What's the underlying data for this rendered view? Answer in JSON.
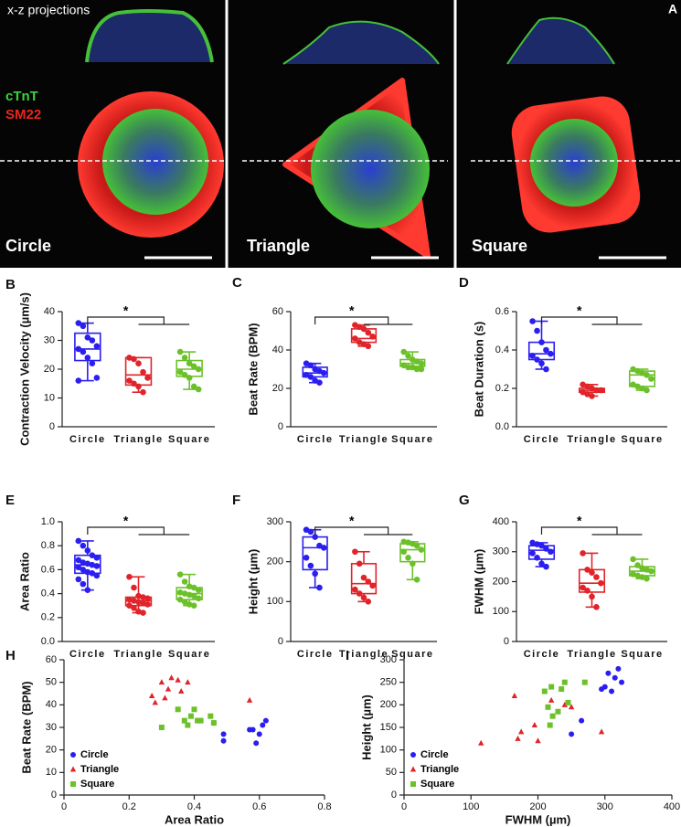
{
  "panel_a": {
    "panel": "A",
    "projection_label": "x-z projections",
    "stains": [
      {
        "text": "cTnT",
        "color": "#3cd23c"
      },
      {
        "text": "SM22",
        "color": "#e8261e"
      }
    ],
    "shapes": [
      "Circle",
      "Triangle",
      "Square"
    ]
  },
  "chart_data": [
    {
      "type": "box",
      "panel": "B",
      "y_label": "Contraction Velocity (µm/s)",
      "ylim": [
        0,
        40
      ],
      "yticks": [
        0,
        10,
        20,
        30,
        40
      ],
      "annotation": "*",
      "series": [
        {
          "name": "Circle",
          "color": "#2b1ef0",
          "min": 16,
          "q1": 23,
          "median": 27,
          "q3": 32.5,
          "max": 36,
          "points": [
            36,
            35,
            31,
            30,
            28,
            27,
            26,
            24,
            22,
            17,
            16
          ]
        },
        {
          "name": "Triangle",
          "color": "#e0242a",
          "min": 12,
          "q1": 14.5,
          "median": 18,
          "q3": 24,
          "max": 24,
          "points": [
            24,
            23.5,
            22,
            19,
            17,
            16,
            15,
            14,
            12
          ]
        },
        {
          "name": "Square",
          "color": "#6cc12a",
          "min": 13,
          "q1": 17.5,
          "median": 20,
          "q3": 23,
          "max": 26,
          "points": [
            26,
            24,
            22,
            21,
            20,
            19,
            18,
            17,
            14,
            13
          ]
        }
      ]
    },
    {
      "type": "box",
      "panel": "C",
      "y_label": "Beat Rate (BPM)",
      "ylim": [
        0,
        60
      ],
      "yticks": [
        0,
        20,
        40,
        60
      ],
      "annotation": "*",
      "series": [
        {
          "name": "Circle",
          "color": "#2b1ef0",
          "min": 23,
          "q1": 26,
          "median": 28,
          "q3": 31,
          "max": 33,
          "points": [
            33,
            32,
            30,
            29,
            28,
            27,
            26,
            24,
            23
          ]
        },
        {
          "name": "Triangle",
          "color": "#e0242a",
          "min": 42,
          "q1": 44,
          "median": 46,
          "q3": 51,
          "max": 53,
          "points": [
            53,
            52,
            51,
            49,
            47,
            46,
            44,
            43,
            42
          ]
        },
        {
          "name": "Square",
          "color": "#6cc12a",
          "min": 30,
          "q1": 31.5,
          "median": 33,
          "q3": 35,
          "max": 39,
          "points": [
            39,
            37,
            35,
            34,
            33,
            32,
            31,
            31,
            30,
            30
          ]
        }
      ]
    },
    {
      "type": "box",
      "panel": "D",
      "y_label": "Beat Duration (s)",
      "ylim": [
        0,
        0.6
      ],
      "yticks": [
        {
          "value": 0,
          "label": "0.0"
        },
        0.2,
        0.4,
        0.6
      ],
      "annotation": "*",
      "series": [
        {
          "name": "Circle",
          "color": "#2b1ef0",
          "min": 0.3,
          "q1": 0.35,
          "median": 0.38,
          "q3": 0.44,
          "max": 0.55,
          "points": [
            0.55,
            0.5,
            0.44,
            0.4,
            0.38,
            0.37,
            0.35,
            0.33,
            0.3
          ]
        },
        {
          "name": "Triangle",
          "color": "#e0242a",
          "min": 0.16,
          "q1": 0.18,
          "median": 0.19,
          "q3": 0.2,
          "max": 0.22,
          "points": [
            0.22,
            0.21,
            0.2,
            0.19,
            0.19,
            0.18,
            0.17,
            0.16
          ]
        },
        {
          "name": "Square",
          "color": "#6cc12a",
          "min": 0.19,
          "q1": 0.21,
          "median": 0.27,
          "q3": 0.29,
          "max": 0.3,
          "points": [
            0.3,
            0.29,
            0.28,
            0.27,
            0.25,
            0.22,
            0.21,
            0.2,
            0.19
          ]
        }
      ]
    },
    {
      "type": "box",
      "panel": "E",
      "y_label": "Area Ratio",
      "ylim": [
        0,
        1
      ],
      "yticks": [
        {
          "value": 0,
          "label": "0.0"
        },
        0.2,
        0.4,
        0.6,
        0.8,
        {
          "value": 1,
          "label": "1.0"
        }
      ],
      "annotation": "*",
      "series": [
        {
          "name": "Circle",
          "color": "#2b1ef0",
          "min": 0.43,
          "q1": 0.57,
          "median": 0.64,
          "q3": 0.72,
          "max": 0.84,
          "points": [
            0.84,
            0.8,
            0.76,
            0.72,
            0.7,
            0.68,
            0.66,
            0.65,
            0.64,
            0.63,
            0.62,
            0.6,
            0.58,
            0.57,
            0.55,
            0.52,
            0.48,
            0.43
          ]
        },
        {
          "name": "Triangle",
          "color": "#e0242a",
          "min": 0.24,
          "q1": 0.3,
          "median": 0.34,
          "q3": 0.37,
          "max": 0.54,
          "points": [
            0.54,
            0.45,
            0.38,
            0.37,
            0.36,
            0.35,
            0.34,
            0.33,
            0.32,
            0.31,
            0.3,
            0.28,
            0.25,
            0.24
          ]
        },
        {
          "name": "Square",
          "color": "#6cc12a",
          "min": 0.3,
          "q1": 0.35,
          "median": 0.4,
          "q3": 0.45,
          "max": 0.56,
          "points": [
            0.56,
            0.5,
            0.46,
            0.45,
            0.43,
            0.41,
            0.4,
            0.39,
            0.38,
            0.36,
            0.35,
            0.33,
            0.31,
            0.3
          ]
        }
      ]
    },
    {
      "type": "box",
      "panel": "F",
      "y_label": "Height (µm)",
      "ylim": [
        0,
        300
      ],
      "yticks": [
        0,
        100,
        200,
        300
      ],
      "annotation": "*",
      "series": [
        {
          "name": "Circle",
          "color": "#2b1ef0",
          "min": 135,
          "q1": 180,
          "median": 235,
          "q3": 262,
          "max": 280,
          "points": [
            280,
            275,
            262,
            240,
            235,
            210,
            190,
            170,
            135
          ]
        },
        {
          "name": "Triangle",
          "color": "#e0242a",
          "min": 100,
          "q1": 120,
          "median": 145,
          "q3": 195,
          "max": 225,
          "points": [
            225,
            195,
            160,
            150,
            140,
            130,
            120,
            110,
            100
          ]
        },
        {
          "name": "Square",
          "color": "#6cc12a",
          "min": 155,
          "q1": 200,
          "median": 230,
          "q3": 245,
          "max": 250,
          "points": [
            250,
            248,
            245,
            240,
            230,
            225,
            210,
            195,
            155
          ]
        }
      ]
    },
    {
      "type": "box",
      "panel": "G",
      "y_label": "FWHM (µm)",
      "ylim": [
        0,
        400
      ],
      "yticks": [
        0,
        100,
        200,
        300,
        400
      ],
      "annotation": "*",
      "series": [
        {
          "name": "Circle",
          "color": "#2b1ef0",
          "min": 250,
          "q1": 275,
          "median": 305,
          "q3": 320,
          "max": 330,
          "points": [
            330,
            325,
            320,
            310,
            300,
            295,
            280,
            260,
            250
          ]
        },
        {
          "name": "Triangle",
          "color": "#e0242a",
          "min": 115,
          "q1": 165,
          "median": 195,
          "q3": 240,
          "max": 295,
          "points": [
            295,
            240,
            230,
            215,
            195,
            180,
            170,
            150,
            115
          ]
        },
        {
          "name": "Square",
          "color": "#6cc12a",
          "min": 210,
          "q1": 220,
          "median": 235,
          "q3": 250,
          "max": 275,
          "points": [
            275,
            255,
            245,
            240,
            235,
            225,
            220,
            215,
            210
          ]
        }
      ]
    },
    {
      "type": "scatter",
      "panel": "H",
      "x_label": "Area Ratio",
      "y_label": "Beat Rate (BPM)",
      "legend": "lower left",
      "xlim": [
        0,
        0.8
      ],
      "xticks": [
        0,
        0.2,
        0.4,
        0.6,
        0.8
      ],
      "ylim": [
        0,
        60
      ],
      "yticks": [
        0,
        10,
        20,
        30,
        40,
        50,
        60
      ],
      "series": [
        {
          "name": "Circle",
          "color": "#2b1ef0",
          "marker": "circle",
          "x": [
            0.46,
            0.49,
            0.49,
            0.57,
            0.58,
            0.59,
            0.6,
            0.61,
            0.62
          ],
          "values": [
            32,
            27,
            24,
            29,
            29,
            23,
            27,
            31,
            33
          ]
        },
        {
          "name": "Triangle",
          "color": "#e0242a",
          "marker": "triangle",
          "x": [
            0.27,
            0.28,
            0.3,
            0.31,
            0.32,
            0.33,
            0.35,
            0.36,
            0.38,
            0.57
          ],
          "values": [
            44,
            41,
            50,
            43,
            47,
            52,
            51,
            46,
            50,
            42
          ]
        },
        {
          "name": "Square",
          "color": "#6cc12a",
          "marker": "square",
          "x": [
            0.3,
            0.35,
            0.37,
            0.38,
            0.39,
            0.4,
            0.41,
            0.42,
            0.45,
            0.46
          ],
          "values": [
            30,
            38,
            33,
            31,
            35,
            38,
            33,
            33,
            35,
            32
          ]
        }
      ]
    },
    {
      "type": "scatter",
      "panel": "I",
      "x_label": "FWHM (µm)",
      "y_label": "Height (µm)",
      "legend": "lower left",
      "xlim": [
        0,
        400
      ],
      "xticks": [
        0,
        100,
        200,
        300,
        400
      ],
      "ylim": [
        0,
        300
      ],
      "yticks": [
        0,
        50,
        100,
        150,
        200,
        250,
        300
      ],
      "series": [
        {
          "name": "Circle",
          "color": "#2b1ef0",
          "marker": "circle",
          "x": [
            250,
            265,
            295,
            300,
            305,
            310,
            315,
            320,
            325
          ],
          "values": [
            135,
            165,
            235,
            240,
            270,
            230,
            260,
            280,
            250
          ]
        },
        {
          "name": "Triangle",
          "color": "#e0242a",
          "marker": "triangle",
          "x": [
            115,
            165,
            170,
            175,
            195,
            200,
            220,
            240,
            250,
            295
          ],
          "values": [
            115,
            220,
            125,
            140,
            155,
            120,
            210,
            200,
            195,
            140
          ]
        },
        {
          "name": "Square",
          "color": "#6cc12a",
          "marker": "square",
          "x": [
            210,
            215,
            218,
            220,
            222,
            230,
            235,
            240,
            245,
            270
          ],
          "values": [
            230,
            195,
            155,
            240,
            175,
            185,
            235,
            250,
            205,
            250
          ]
        }
      ]
    }
  ]
}
